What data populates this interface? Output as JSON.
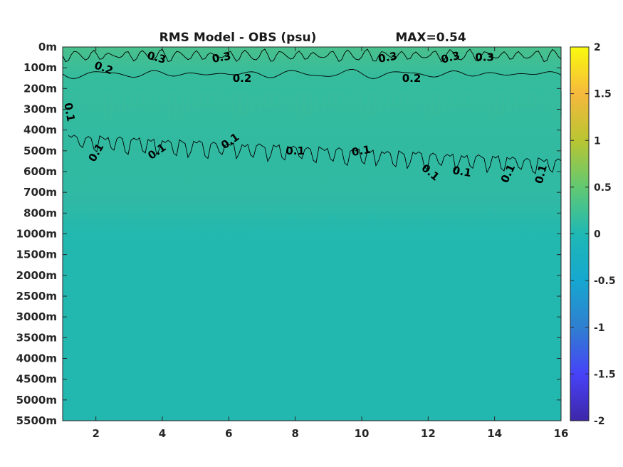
{
  "chart_data": {
    "type": "heatmap",
    "title": "RMS Model - OBS (psu)",
    "max_label": "MAX=0.54",
    "x_ticks": [
      "2",
      "4",
      "6",
      "8",
      "10",
      "12",
      "14",
      "16"
    ],
    "x_tick_values": [
      2,
      4,
      6,
      8,
      10,
      12,
      14,
      16
    ],
    "xlim": [
      1,
      16
    ],
    "y_ticks": [
      "0m",
      "100m",
      "200m",
      "300m",
      "400m",
      "500m",
      "600m",
      "700m",
      "800m",
      "1000m",
      "1500m",
      "2000m",
      "2500m",
      "3000m",
      "3500m",
      "4000m",
      "4500m",
      "5000m",
      "5500m"
    ],
    "colorbar": {
      "ticks": [
        "2",
        "1.5",
        "1",
        "0.5",
        "0",
        "-0.5",
        "-1",
        "-1.5",
        "-2"
      ],
      "range": [
        -2,
        2
      ],
      "colormap": [
        "#3e26a8",
        "#4743f8",
        "#2f7fd0",
        "#16a7d0",
        "#1fb8b4",
        "#62c972",
        "#b9c532",
        "#f6b93d",
        "#f9fb0e"
      ]
    },
    "field_colors": {
      "surface": "#49c08c",
      "upper": "#35bc9d",
      "mid": "#2fb9a4",
      "deep": "#22b8b0"
    },
    "contour_levels": [
      0.1,
      0.2,
      0.3
    ],
    "contour_labels": [
      {
        "text": "0.3",
        "x": 3.8,
        "depth": "0m-100m",
        "angle": 15
      },
      {
        "text": "0.3",
        "x": 5.8,
        "depth": "0m-100m",
        "angle": -10
      },
      {
        "text": "0.3",
        "x": 10.8,
        "depth": "0m-100m",
        "angle": -10
      },
      {
        "text": "0.3",
        "x": 12.7,
        "depth": "0m-100m",
        "angle": -15
      },
      {
        "text": "0.3",
        "x": 13.7,
        "depth": "0m-100m",
        "angle": 0
      },
      {
        "text": "0.2",
        "x": 2.2,
        "depth": "100m",
        "angle": 20
      },
      {
        "text": "0.2",
        "x": 6.4,
        "depth": "100m-200m",
        "angle": 0
      },
      {
        "text": "0.2",
        "x": 11.5,
        "depth": "100m-200m",
        "angle": 0
      },
      {
        "text": "0.1",
        "x": 1.1,
        "depth": "300m",
        "angle": 80
      },
      {
        "text": "0.1",
        "x": 2.1,
        "depth": "500m",
        "angle": -60
      },
      {
        "text": "0.1",
        "x": 3.9,
        "depth": "500m",
        "angle": -35
      },
      {
        "text": "0.1",
        "x": 6.1,
        "depth": "400m-500m",
        "angle": -35
      },
      {
        "text": "0.1",
        "x": 8.0,
        "depth": "500m",
        "angle": 0
      },
      {
        "text": "0.1",
        "x": 10.0,
        "depth": "500m",
        "angle": -10
      },
      {
        "text": "0.1",
        "x": 12.0,
        "depth": "600m",
        "angle": 40
      },
      {
        "text": "0.1",
        "x": 13.0,
        "depth": "600m",
        "angle": 10
      },
      {
        "text": "0.1",
        "x": 14.5,
        "depth": "600m",
        "angle": -65
      },
      {
        "text": "0.1",
        "x": 15.5,
        "depth": "600m",
        "angle": -75
      }
    ]
  }
}
